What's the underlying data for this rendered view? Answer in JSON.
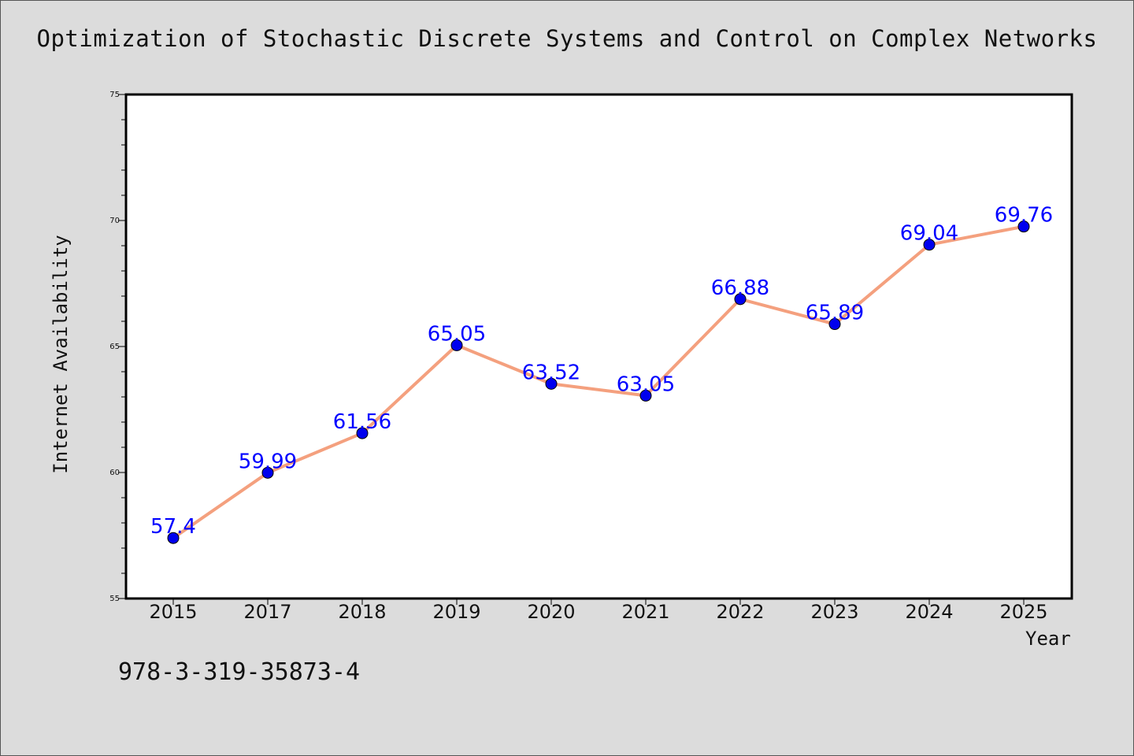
{
  "chart_data": {
    "type": "line",
    "title": "Optimization of Stochastic Discrete Systems and Control on Complex Networks",
    "xlabel": "Year",
    "ylabel": "Internet Availability",
    "categories": [
      "2015",
      "2017",
      "2018",
      "2019",
      "2020",
      "2021",
      "2022",
      "2023",
      "2024",
      "2025"
    ],
    "series": [
      {
        "values": [
          57.4,
          59.99,
          61.56,
          65.05,
          63.52,
          63.05,
          66.88,
          65.89,
          69.04,
          69.76
        ],
        "labels": [
          "57.4",
          "59.99",
          "61.56",
          "65.05",
          "63.52",
          "63.05",
          "66.88",
          "65.89",
          "69.04",
          "69.76"
        ],
        "line_color": "#f4a07e",
        "marker_color": "#0000ee"
      }
    ],
    "ylim": [
      55,
      75
    ],
    "yticks": [
      "55",
      "60",
      "65",
      "70",
      "75"
    ],
    "grid": false,
    "legend": false,
    "label_color": "#0000ff"
  },
  "footer": {
    "isbn": "978-3-319-35873-4"
  },
  "colors": {
    "background": "#dcdcdc",
    "plot_background": "#ffffff",
    "axis": "#000000"
  }
}
